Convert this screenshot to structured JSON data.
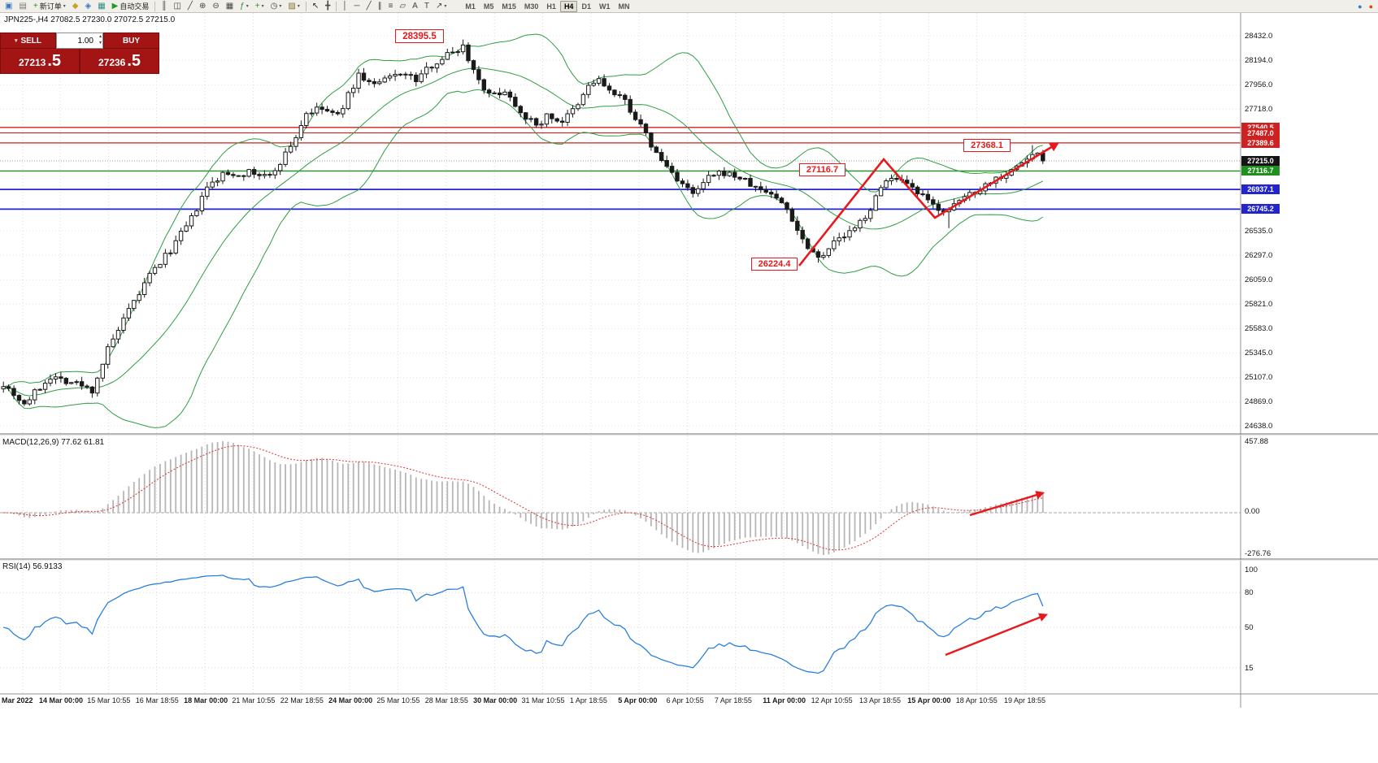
{
  "colors": {
    "up_candle": "#ffffff",
    "down_candle": "#1a1a1a",
    "wick": "#1a1a1a",
    "bollinger": "#2f9e44",
    "macd_hist": "#b6b6b6",
    "macd_signal": "#e03131",
    "rsi_line": "#2a7fde",
    "annotation": "#e8191c",
    "grid": "#d9d9d9"
  },
  "toolbar": {
    "items": [
      {
        "name": "chart-window-icon",
        "glyph": "▣",
        "color": "#3b78c4"
      },
      {
        "name": "profiles-icon",
        "glyph": "▤",
        "color": "#777777"
      },
      {
        "name": "new-order-button",
        "glyph": "+",
        "label": "新订单",
        "color": "#1e9e1e",
        "dropdown": true
      },
      {
        "name": "market-watch-icon",
        "glyph": "◆",
        "color": "#c9a227"
      },
      {
        "name": "data-window-icon",
        "glyph": "◈",
        "color": "#3b78c4"
      },
      {
        "name": "terminal-window-icon",
        "glyph": "▦",
        "color": "#2e8b8b"
      },
      {
        "name": "auto-trading-button",
        "glyph": "▶",
        "label": "自动交易",
        "color": "#1e9e1e"
      },
      {
        "sep": true
      },
      {
        "name": "bar-chart-icon",
        "glyph": "║",
        "color": "#444444"
      },
      {
        "name": "candlestick-chart-icon",
        "glyph": "◫",
        "color": "#444444"
      },
      {
        "name": "line-chart-icon",
        "glyph": "╱",
        "color": "#444444"
      },
      {
        "name": "zoom-in-icon",
        "glyph": "⊕",
        "color": "#444444"
      },
      {
        "name": "zoom-out-icon",
        "glyph": "⊖",
        "color": "#444444"
      },
      {
        "name": "tile-windows-icon",
        "glyph": "▦",
        "color": "#444444"
      },
      {
        "name": "indicators-icon",
        "glyph": "ƒ",
        "color": "#2e8b2e",
        "dropdown": true
      },
      {
        "name": "add-indicator-icon",
        "glyph": "+",
        "color": "#1e9e1e",
        "dropdown": true
      },
      {
        "name": "periods-icon",
        "glyph": "◷",
        "color": "#444444",
        "dropdown": true
      },
      {
        "name": "templates-icon",
        "glyph": "▨",
        "color": "#8a6d3b",
        "dropdown": true
      },
      {
        "sep": true
      },
      {
        "name": "cursor-icon",
        "glyph": "↖",
        "color": "#222222"
      },
      {
        "name": "crosshair-icon",
        "glyph": "╋",
        "color": "#444444"
      },
      {
        "sep": true
      },
      {
        "name": "vertical-line-icon",
        "glyph": "│",
        "color": "#444444"
      },
      {
        "name": "horizontal-line-icon",
        "glyph": "─",
        "color": "#444444"
      },
      {
        "name": "trendline-icon",
        "glyph": "╱",
        "color": "#444444"
      },
      {
        "name": "channel-icon",
        "glyph": "∥",
        "color": "#444444"
      },
      {
        "name": "fibonacci-icon",
        "glyph": "≡",
        "color": "#444444"
      },
      {
        "name": "shapes-icon",
        "glyph": "▱",
        "color": "#444444"
      },
      {
        "name": "text-icon",
        "glyph": "A",
        "color": "#444444"
      },
      {
        "name": "text-label-icon",
        "glyph": "T",
        "color": "#444444"
      },
      {
        "name": "arrows-icon",
        "glyph": "↗",
        "color": "#444444",
        "dropdown": true
      }
    ],
    "timeframes": [
      "M1",
      "M5",
      "M15",
      "M30",
      "H1",
      "H4",
      "D1",
      "W1",
      "MN"
    ],
    "active_timeframe": "H4",
    "right_icons": [
      {
        "name": "community-icon",
        "glyph": "●",
        "color": "#3b78c4"
      },
      {
        "name": "notifications-icon",
        "glyph": "●",
        "color": "#d9480f"
      }
    ]
  },
  "chart": {
    "symbol_info": "JPN225-,H4  27082.5 27230.0 27072.5 27215.0"
  },
  "trade_panel": {
    "sell_label": "SELL",
    "buy_label": "BUY",
    "volume": "1.00",
    "sell_price_big": "27213",
    "sell_price_sup": ".5",
    "buy_price_big": "27236",
    "buy_price_sup": ".5"
  },
  "annotations": {
    "peak": "28395.5",
    "recent_high": "27368.1",
    "mid": "27116.7",
    "swing_low": "26224.4"
  },
  "price_scale": [
    28432.0,
    28194.0,
    27956.0,
    27718.0,
    26535.0,
    26297.0,
    26059.0,
    25821.0,
    25583.0,
    25345.0,
    25107.0,
    24869.0,
    24638.0
  ],
  "price_lines": [
    {
      "price": 27540.5,
      "color": "#cc2222",
      "tag_bg": "#cc2222",
      "width": 1.3,
      "style": "solid"
    },
    {
      "price": 27487.0,
      "color": "#cc2222",
      "tag_bg": "#cc2222",
      "width": 1.1,
      "style": "solid"
    },
    {
      "price": 27389.6,
      "color": "#cc2222",
      "tag_bg": "#cc2222",
      "width": 1.3,
      "style": "solid"
    },
    {
      "price": 27215.0,
      "color": "#9a9a9a",
      "tag_bg": "#141414",
      "width": 1,
      "style": "dot"
    },
    {
      "price": 27116.7,
      "color": "#1f8f1f",
      "tag_bg": "#1f8f1f",
      "width": 1.4,
      "style": "solid"
    },
    {
      "price": 26937.1,
      "color": "#2424cc",
      "tag_bg": "#2424cc",
      "width": 1.8,
      "style": "solid"
    },
    {
      "price": 26745.2,
      "color": "#2424cc",
      "tag_bg": "#2424cc",
      "width": 1.8,
      "style": "solid"
    }
  ],
  "macd": {
    "label": "MACD(12,26,9) 77.62 61.81",
    "scale_max": "457.88",
    "scale_zero": "0.00",
    "scale_min": "-276.76"
  },
  "rsi": {
    "label": "RSI(14) 56.9133",
    "scale": [
      "100",
      "80",
      "50",
      "15"
    ]
  },
  "time_axis": [
    "Mar 2022",
    "14 Mar 00:00",
    "15 Mar 10:55",
    "16 Mar 18:55",
    "18 Mar 00:00",
    "21 Mar 10:55",
    "22 Mar 18:55",
    "24 Mar 00:00",
    "25 Mar 10:55",
    "28 Mar 18:55",
    "30 Mar 00:00",
    "31 Mar 10:55",
    "1 Apr 18:55",
    "5 Apr 00:00",
    "6 Apr 10:55",
    "7 Apr 18:55",
    "11 Apr 00:00",
    "12 Apr 10:55",
    "13 Apr 18:55",
    "15 Apr 00:00",
    "18 Apr 10:55",
    "19 Apr 18:55"
  ],
  "chart_data": {
    "type": "candlestick",
    "symbol": "JPN225-",
    "timeframe": "H4",
    "current_bar": {
      "open": 27082.5,
      "high": 27230.0,
      "low": 27072.5,
      "close": 27215.0
    },
    "bid": 27213.5,
    "ask": 27236.5,
    "indicators": {
      "bollinger": "Bands(20,2)",
      "macd_values": [
        77.62,
        61.81
      ],
      "rsi_value": 56.9133
    },
    "key_levels": [
      28395.5,
      27540.5,
      27487.0,
      27389.6,
      27368.1,
      27215.0,
      27116.7,
      26937.1,
      26745.2,
      26224.4
    ],
    "candle_count": 200,
    "price_path": [
      [
        0,
        25050
      ],
      [
        4,
        24850
      ],
      [
        9,
        25120
      ],
      [
        14,
        25050
      ],
      [
        17,
        24980
      ],
      [
        20,
        25380
      ],
      [
        24,
        25750
      ],
      [
        28,
        26100
      ],
      [
        32,
        26350
      ],
      [
        36,
        26650
      ],
      [
        39,
        26950
      ],
      [
        42,
        27080
      ],
      [
        47,
        27100
      ],
      [
        51,
        27060
      ],
      [
        54,
        27280
      ],
      [
        56,
        27450
      ],
      [
        58,
        27680
      ],
      [
        61,
        27720
      ],
      [
        64,
        27650
      ],
      [
        66,
        27850
      ],
      [
        68,
        28050
      ],
      [
        71,
        27950
      ],
      [
        73,
        28000
      ],
      [
        76,
        28080
      ],
      [
        79,
        28000
      ],
      [
        82,
        28150
      ],
      [
        85,
        28250
      ],
      [
        88,
        28330
      ],
      [
        90,
        28100
      ],
      [
        93,
        27850
      ],
      [
        96,
        27900
      ],
      [
        99,
        27700
      ],
      [
        102,
        27550
      ],
      [
        104,
        27650
      ],
      [
        107,
        27600
      ],
      [
        110,
        27750
      ],
      [
        112,
        27950
      ],
      [
        114,
        28000
      ],
      [
        117,
        27850
      ],
      [
        119,
        27800
      ],
      [
        122,
        27550
      ],
      [
        125,
        27280
      ],
      [
        128,
        27100
      ],
      [
        132,
        26880
      ],
      [
        135,
        27050
      ],
      [
        138,
        27100
      ],
      [
        141,
        27050
      ],
      [
        144,
        26950
      ],
      [
        147,
        26900
      ],
      [
        150,
        26750
      ],
      [
        153,
        26450
      ],
      [
        156,
        26280
      ],
      [
        159,
        26420
      ],
      [
        163,
        26550
      ],
      [
        166,
        26750
      ],
      [
        169,
        27050
      ],
      [
        172,
        27000
      ],
      [
        175,
        26900
      ],
      [
        178,
        26780
      ],
      [
        181,
        26720
      ],
      [
        184,
        26870
      ],
      [
        187,
        26950
      ],
      [
        190,
        27050
      ],
      [
        193,
        27120
      ],
      [
        195,
        27200
      ],
      [
        198,
        27300
      ],
      [
        199,
        27215
      ]
    ]
  }
}
